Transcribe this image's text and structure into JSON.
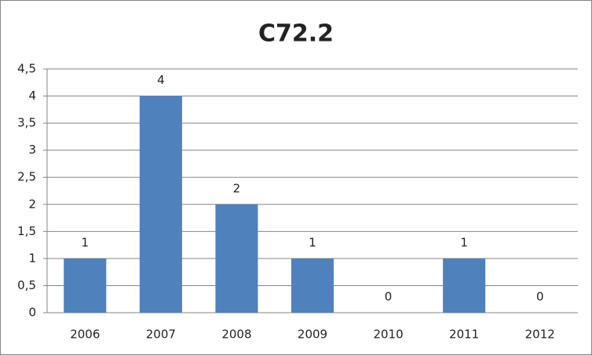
{
  "chart_data": {
    "type": "bar",
    "title": "C72.2",
    "categories": [
      "2006",
      "2007",
      "2008",
      "2009",
      "2010",
      "2011",
      "2012"
    ],
    "values": [
      1,
      4,
      2,
      1,
      0,
      1,
      0
    ],
    "color": "#4f81bd",
    "ylim": [
      0,
      4.5
    ],
    "yticks": [
      0,
      {
        "value": 0.5,
        "label": "0,5"
      },
      1,
      {
        "value": 1.5,
        "label": "1,5"
      },
      2,
      {
        "value": 2.5,
        "label": "2,5"
      },
      3,
      {
        "value": 3.5,
        "label": "3,5"
      },
      4,
      {
        "value": 4.5,
        "label": "4,5"
      }
    ],
    "grid": true,
    "data_labels": true
  }
}
